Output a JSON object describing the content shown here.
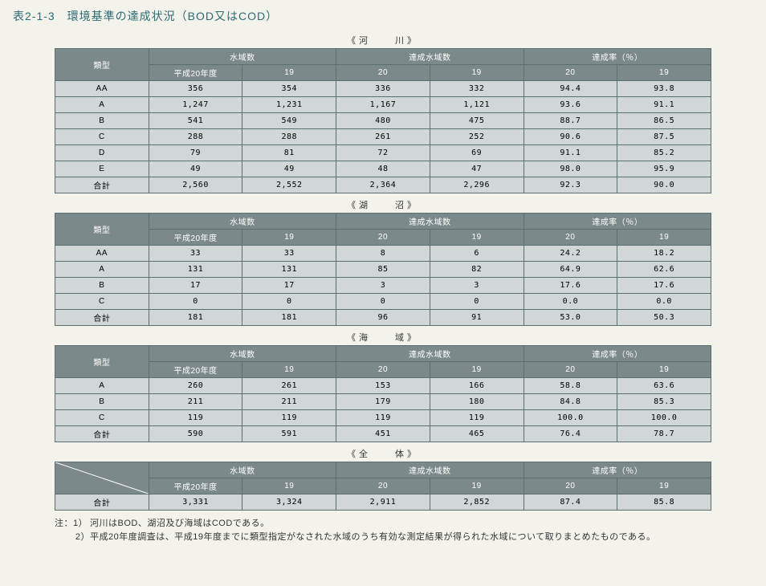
{
  "title": "表2-1-3　環境基準の達成状況（BOD又はCOD）",
  "headers": {
    "rowtype": "類型",
    "group1": "水域数",
    "group2": "達成水域数",
    "group3": "達成率（％）",
    "sub_y20": "平成20年度",
    "sub_19a": "19",
    "sub_20": "20",
    "sub_19b": "19",
    "sub_20b": "20",
    "sub_19c": "19",
    "total": "合計"
  },
  "sections": [
    {
      "caption": "《河　　川》",
      "rows": [
        [
          "AA",
          "356",
          "354",
          "336",
          "332",
          "94.4",
          "93.8"
        ],
        [
          "A",
          "1,247",
          "1,231",
          "1,167",
          "1,121",
          "93.6",
          "91.1"
        ],
        [
          "B",
          "541",
          "549",
          "480",
          "475",
          "88.7",
          "86.5"
        ],
        [
          "C",
          "288",
          "288",
          "261",
          "252",
          "90.6",
          "87.5"
        ],
        [
          "D",
          "79",
          "81",
          "72",
          "69",
          "91.1",
          "85.2"
        ],
        [
          "E",
          "49",
          "49",
          "48",
          "47",
          "98.0",
          "95.9"
        ],
        [
          "合計",
          "2,560",
          "2,552",
          "2,364",
          "2,296",
          "92.3",
          "90.0"
        ]
      ]
    },
    {
      "caption": "《湖　　沼》",
      "rows": [
        [
          "AA",
          "33",
          "33",
          "8",
          "6",
          "24.2",
          "18.2"
        ],
        [
          "A",
          "131",
          "131",
          "85",
          "82",
          "64.9",
          "62.6"
        ],
        [
          "B",
          "17",
          "17",
          "3",
          "3",
          "17.6",
          "17.6"
        ],
        [
          "C",
          "0",
          "0",
          "0",
          "0",
          "0.0",
          "0.0"
        ],
        [
          "合計",
          "181",
          "181",
          "96",
          "91",
          "53.0",
          "50.3"
        ]
      ]
    },
    {
      "caption": "《海　　域》",
      "rows": [
        [
          "A",
          "260",
          "261",
          "153",
          "166",
          "58.8",
          "63.6"
        ],
        [
          "B",
          "211",
          "211",
          "179",
          "180",
          "84.8",
          "85.3"
        ],
        [
          "C",
          "119",
          "119",
          "119",
          "119",
          "100.0",
          "100.0"
        ],
        [
          "合計",
          "590",
          "591",
          "451",
          "465",
          "76.4",
          "78.7"
        ]
      ]
    }
  ],
  "overall": {
    "caption": "《全　　体》",
    "row": [
      "合計",
      "3,331",
      "3,324",
      "2,911",
      "2,852",
      "87.4",
      "85.8"
    ]
  },
  "notes": {
    "label1": "注：1）",
    "text1": "河川はBOD、湖沼及び海域はCODである。",
    "label2": "2）",
    "text2": "平成20年度調査は、平成19年度までに類型指定がなされた水域のうち有効な測定結果が得られた水域について取りまとめたものである。"
  },
  "style": {
    "header_bg": "#7c898b",
    "header_fg": "#ffffff",
    "cell_bg": "#d1d7d7",
    "border": "#5a6f72",
    "page_bg": "#f3f3ec",
    "title_color": "#2d6b73"
  }
}
